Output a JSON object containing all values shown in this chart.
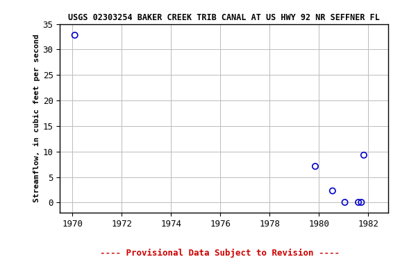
{
  "title": "USGS 02303254 BAKER CREEK TRIB CANAL AT US HWY 92 NR SEFFNER FL",
  "ylabel": "Streamflow, in cubic feet per second",
  "xlabel_note": "---- Provisional Data Subject to Revision ----",
  "xlim": [
    1969.5,
    1982.8
  ],
  "ylim": [
    -2,
    35
  ],
  "yticks": [
    0,
    5,
    10,
    15,
    20,
    25,
    30,
    35
  ],
  "xticks": [
    1970,
    1972,
    1974,
    1976,
    1978,
    1980,
    1982
  ],
  "data_x": [
    1970.1,
    1979.85,
    1980.55,
    1981.05,
    1981.6,
    1981.72,
    1981.82
  ],
  "data_y": [
    32.8,
    7.1,
    2.3,
    0.05,
    0.05,
    0.05,
    9.3
  ],
  "marker_color": "#0000cc",
  "marker_size": 6,
  "background_color": "#ffffff",
  "grid_color": "#bbbbbb",
  "title_fontsize": 8.5,
  "ylabel_fontsize": 8,
  "tick_fontsize": 9,
  "note_color": "#cc0000",
  "note_fontsize": 9
}
